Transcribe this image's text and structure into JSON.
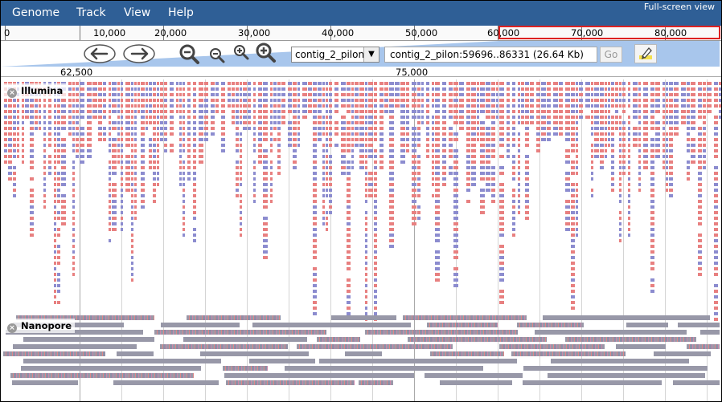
{
  "menu": {
    "items": [
      "Genome",
      "Track",
      "View",
      "Help"
    ],
    "fullscreen": "Full-screen view"
  },
  "overview": {
    "labels": [
      "0",
      "10,000",
      "20,000",
      "30,000",
      "40,000",
      "50,000",
      "60,000",
      "70,000",
      "80,000"
    ]
  },
  "nav": {
    "sequence": "contig_2_pilon",
    "location": "contig_2_pilon:59696..86331 (26.64 Kb)",
    "go_label": "Go",
    "pos_labels": [
      "62,500",
      "75,000"
    ]
  },
  "tracks": {
    "illumina": {
      "label": "Illumina"
    },
    "nanopore": {
      "label": "Nanopore"
    }
  },
  "colors": {
    "menubar": "#2f5f96",
    "forward_read": "#e88080",
    "reverse_read": "#8c8ccf",
    "nanopore_read": "#9898a8",
    "highlight": "#dd2222"
  }
}
